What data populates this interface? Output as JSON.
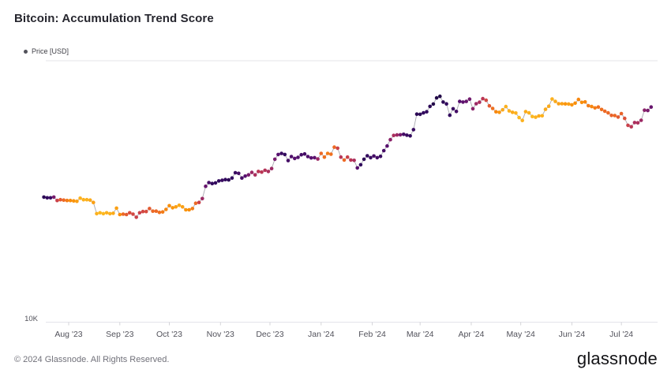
{
  "header": {
    "title": "Bitcoin: Accumulation Trend Score"
  },
  "legend": {
    "label": "Price [USD]",
    "dot_color": "#52525b"
  },
  "footer": {
    "copyright": "© 2024 Glassnode. All Rights Reserved.",
    "brand": "glassnode"
  },
  "chart_data": {
    "type": "scatter",
    "title": "Bitcoin: Accumulation Trend Score",
    "series_name": "Price [USD]",
    "y_axis": {
      "scale": "log",
      "unit": "USD",
      "tick_labels": [
        "10K"
      ],
      "range_usd_thousands": [
        10,
        100
      ],
      "grid": "top-and-bottom-only"
    },
    "x_axis": {
      "tick_labels": [
        "Aug '23",
        "Sep '23",
        "Oct '23",
        "Nov '23",
        "Dec '23",
        "Jan '24",
        "Feb '24",
        "Mar '24",
        "Apr '24",
        "May '24",
        "Jun '24",
        "Jul '24"
      ],
      "tick_days_from_start": [
        15,
        46,
        76,
        107,
        137,
        168,
        199,
        228,
        259,
        289,
        320,
        350
      ]
    },
    "start_date": "2023-07-17",
    "interval_days": 2,
    "price_usd_thousands": [
      30.1,
      29.9,
      29.9,
      30.1,
      29.2,
      29.4,
      29.3,
      29.2,
      29.2,
      29.1,
      29.0,
      29.8,
      29.4,
      29.4,
      29.3,
      28.7,
      26.0,
      26.2,
      26.0,
      26.2,
      26.0,
      26.1,
      27.3,
      25.8,
      25.9,
      25.8,
      26.2,
      25.9,
      25.2,
      26.2,
      26.5,
      26.5,
      27.2,
      26.6,
      26.6,
      26.3,
      26.4,
      27.0,
      27.9,
      27.4,
      27.6,
      28.0,
      27.6,
      26.9,
      26.9,
      27.2,
      28.5,
      28.7,
      29.7,
      33.1,
      34.2,
      33.9,
      34.1,
      34.7,
      34.9,
      35.1,
      35.0,
      35.6,
      37.3,
      37.1,
      35.6,
      36.2,
      36.6,
      37.4,
      36.6,
      37.7,
      37.5,
      38.1,
      37.7,
      38.7,
      42.0,
      43.8,
      44.2,
      43.8,
      41.5,
      43.0,
      42.3,
      42.7,
      43.7,
      44.0,
      43.0,
      42.5,
      42.6,
      42.1,
      44.2,
      42.8,
      44.2,
      43.9,
      46.7,
      46.3,
      42.8,
      41.7,
      42.8,
      41.7,
      41.6,
      38.9,
      40.0,
      42.0,
      43.3,
      42.6,
      43.2,
      42.6,
      43.1,
      45.3,
      47.2,
      49.9,
      51.8,
      52.0,
      52.1,
      52.3,
      51.9,
      51.6,
      54.5,
      62.5,
      62.4,
      63.2,
      63.8,
      66.9,
      68.3,
      72.1,
      73.1,
      69.5,
      68.4,
      61.9,
      65.5,
      64.0,
      69.9,
      69.5,
      69.9,
      71.3,
      65.5,
      68.5,
      69.4,
      71.6,
      70.6,
      67.2,
      65.7,
      63.8,
      63.5,
      64.9,
      66.8,
      64.3,
      63.5,
      63.1,
      60.6,
      59.1,
      63.9,
      63.2,
      61.2,
      60.8,
      61.5,
      61.6,
      65.2,
      67.0,
      71.4,
      69.9,
      68.5,
      68.5,
      68.4,
      68.3,
      67.8,
      68.8,
      71.1,
      69.3,
      69.6,
      67.3,
      66.8,
      66.0,
      66.5,
      65.1,
      64.1,
      63.2,
      61.8,
      61.7,
      60.9,
      62.8,
      60.2,
      56.6,
      55.9,
      58.0,
      57.9,
      59.2,
      64.7,
      64.5,
      66.5
    ],
    "accumulation_score": [
      0.92,
      0.9,
      0.88,
      0.7,
      0.45,
      0.35,
      0.3,
      0.25,
      0.2,
      0.18,
      0.15,
      0.1,
      0.1,
      0.1,
      0.12,
      0.15,
      0.1,
      0.08,
      0.08,
      0.1,
      0.1,
      0.12,
      0.15,
      0.2,
      0.3,
      0.35,
      0.4,
      0.42,
      0.45,
      0.45,
      0.42,
      0.4,
      0.35,
      0.3,
      0.3,
      0.28,
      0.25,
      0.22,
      0.2,
      0.18,
      0.15,
      0.12,
      0.15,
      0.18,
      0.2,
      0.25,
      0.3,
      0.45,
      0.6,
      0.75,
      0.85,
      0.9,
      0.9,
      0.9,
      0.88,
      0.9,
      0.92,
      0.9,
      0.88,
      0.85,
      0.85,
      0.8,
      0.7,
      0.6,
      0.55,
      0.5,
      0.5,
      0.52,
      0.55,
      0.6,
      0.7,
      0.8,
      0.88,
      0.9,
      0.85,
      0.82,
      0.8,
      0.82,
      0.85,
      0.85,
      0.82,
      0.8,
      0.78,
      0.6,
      0.3,
      0.28,
      0.25,
      0.28,
      0.3,
      0.45,
      0.5,
      0.3,
      0.45,
      0.5,
      0.55,
      0.8,
      0.9,
      0.92,
      0.9,
      0.88,
      0.85,
      0.85,
      0.88,
      0.85,
      0.8,
      0.65,
      0.55,
      0.6,
      0.7,
      0.85,
      0.88,
      0.9,
      0.88,
      0.92,
      0.92,
      0.9,
      0.9,
      0.92,
      0.95,
      0.95,
      0.95,
      0.92,
      0.9,
      0.9,
      0.88,
      0.85,
      0.8,
      0.78,
      0.75,
      0.72,
      0.65,
      0.6,
      0.55,
      0.5,
      0.42,
      0.35,
      0.28,
      0.22,
      0.18,
      0.12,
      0.1,
      0.1,
      0.12,
      0.1,
      0.08,
      0.1,
      0.12,
      0.1,
      0.08,
      0.1,
      0.12,
      0.1,
      0.12,
      0.12,
      0.1,
      0.12,
      0.15,
      0.15,
      0.18,
      0.15,
      0.18,
      0.2,
      0.22,
      0.2,
      0.22,
      0.25,
      0.22,
      0.25,
      0.28,
      0.28,
      0.3,
      0.3,
      0.32,
      0.3,
      0.35,
      0.32,
      0.38,
      0.45,
      0.5,
      0.55,
      0.55,
      0.6,
      0.65,
      0.7,
      0.75
    ],
    "score_colormap_stops": [
      [
        0.0,
        "#fbd524"
      ],
      [
        0.1,
        "#fcb11e"
      ],
      [
        0.2,
        "#f98e09"
      ],
      [
        0.3,
        "#ed6925"
      ],
      [
        0.4,
        "#d84c3e"
      ],
      [
        0.5,
        "#ba3655"
      ],
      [
        0.6,
        "#9c2964"
      ],
      [
        0.7,
        "#781c6d"
      ],
      [
        0.8,
        "#57106e"
      ],
      [
        0.9,
        "#320a5e"
      ],
      [
        1.0,
        "#140b34"
      ]
    ],
    "connector_color": "#a8a8b0",
    "axis_color": "#e4e4ea",
    "tick_color": "#d4d4d8",
    "label_color": "#52525b"
  }
}
